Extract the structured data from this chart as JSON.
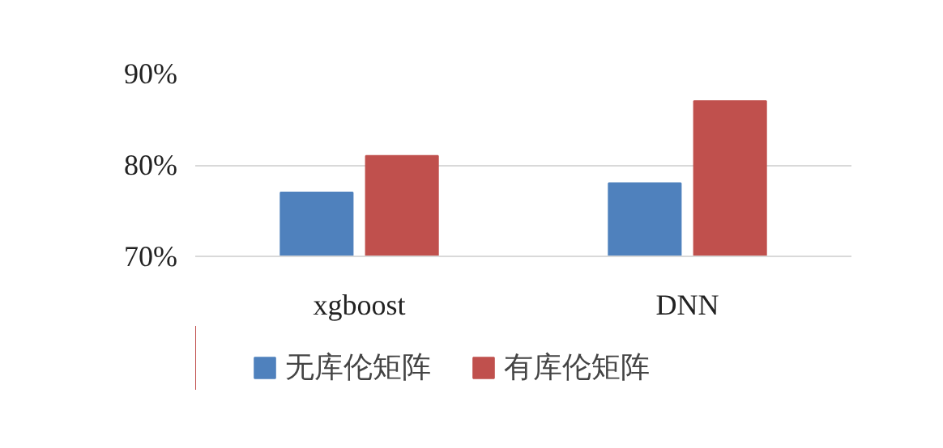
{
  "chart_data": {
    "type": "bar",
    "categories": [
      "xgboost",
      "DNN"
    ],
    "series": [
      {
        "name": "无库伦矩阵",
        "color": "#4f81bd",
        "values": [
          77,
          78
        ]
      },
      {
        "name": "有库伦矩阵",
        "color": "#c0504d",
        "values": [
          81,
          87
        ]
      }
    ],
    "ylim": [
      70,
      90
    ],
    "yticks": [
      {
        "value": 70,
        "label": "70%"
      },
      {
        "value": 80,
        "label": "80%"
      },
      {
        "value": 90,
        "label": "90%"
      }
    ],
    "grid": "y",
    "legend": "bottom"
  }
}
